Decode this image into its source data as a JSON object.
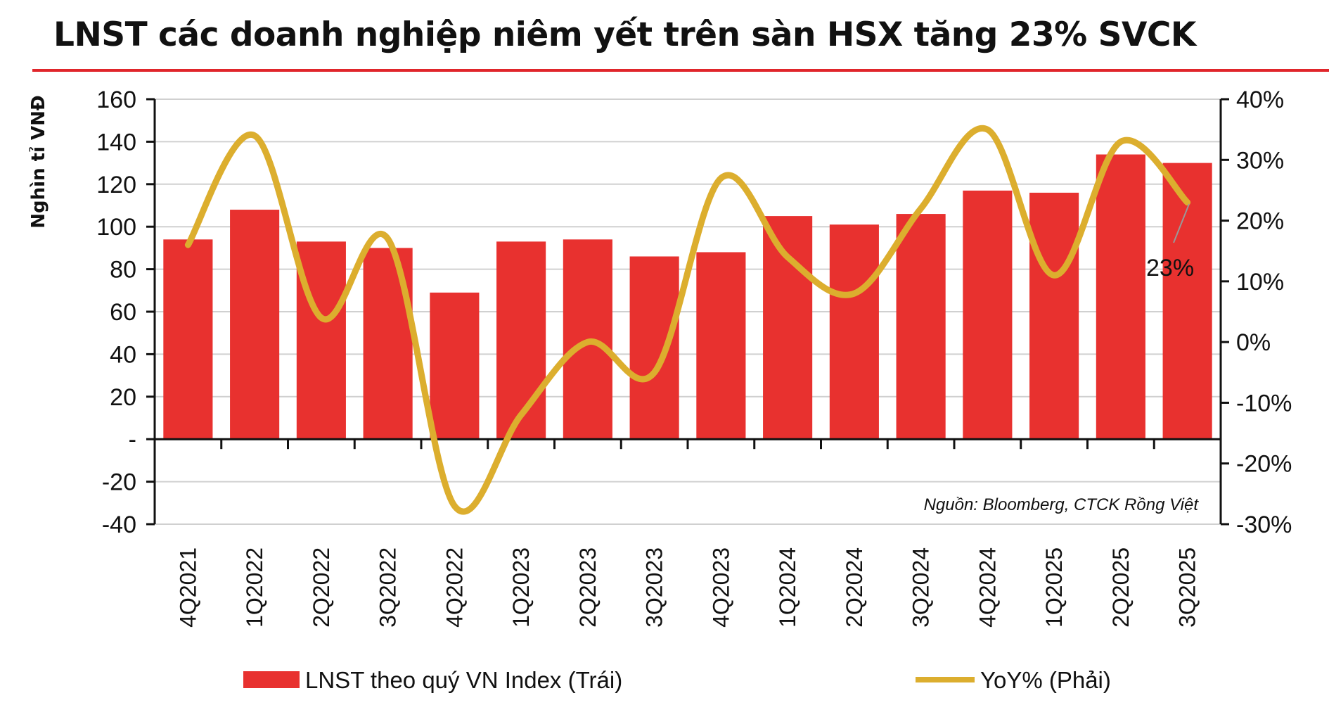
{
  "title": "LNST các doanh nghiệp niêm yết trên sàn HSX tăng 23% SVCK",
  "colors": {
    "bar": "#e8312f",
    "line": "#dcae2e",
    "rule": "#e0262b",
    "grid": "#d0d0d0"
  },
  "chart_data": {
    "type": "bar+line",
    "title": "LNST các doanh nghiệp niêm yết trên sàn HSX tăng 23% SVCK",
    "ylabel": "Nghìn tỉ VNĐ",
    "categories": [
      "4Q2021",
      "1Q2022",
      "2Q2022",
      "3Q2022",
      "4Q2022",
      "1Q2023",
      "2Q2023",
      "3Q2023",
      "4Q2023",
      "1Q2024",
      "2Q2024",
      "3Q2024",
      "4Q2024",
      "1Q2025",
      "2Q2025",
      "3Q2025"
    ],
    "series": [
      {
        "name": "LNST theo quý VN Index (Trái)",
        "type": "bar",
        "axis": "left",
        "values": [
          94,
          108,
          93,
          90,
          69,
          93,
          94,
          86,
          88,
          105,
          101,
          106,
          117,
          116,
          134,
          130
        ]
      },
      {
        "name": "YoY% (Phải)",
        "type": "line",
        "axis": "right",
        "smooth": true,
        "values": [
          16,
          34,
          4,
          17,
          -27,
          -12,
          0,
          -5,
          27,
          14,
          8,
          22,
          35,
          11,
          33,
          23
        ]
      }
    ],
    "left_axis": {
      "ylim": [
        -40,
        160
      ],
      "ticks": [
        "160",
        "140",
        "120",
        "100",
        "80",
        "60",
        "40",
        "20",
        "-",
        "-20",
        "-40"
      ],
      "tick_values": [
        160,
        140,
        120,
        100,
        80,
        60,
        40,
        20,
        0,
        -20,
        -40
      ]
    },
    "right_axis": {
      "ylim": [
        -30,
        40
      ],
      "ticks": [
        "40%",
        "30%",
        "20%",
        "10%",
        "0%",
        "-10%",
        "-20%",
        "-30%"
      ],
      "tick_values": [
        40,
        30,
        20,
        10,
        0,
        -10,
        -20,
        -30
      ]
    },
    "grid": true,
    "legend_position": "bottom",
    "annotation": "23%",
    "source": "Nguồn: Bloomberg, CTCK Rồng Việt"
  }
}
